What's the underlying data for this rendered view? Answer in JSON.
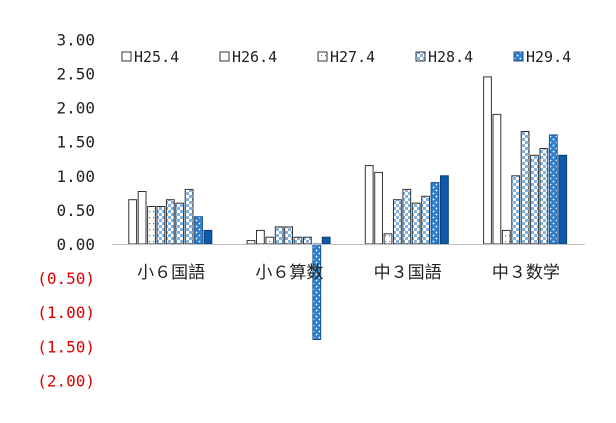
{
  "chart_data": {
    "type": "bar",
    "categories": [
      "小６国語",
      "小６算数",
      "中３国語",
      "中３数学"
    ],
    "series": [
      {
        "name": "H25.4",
        "values": [
          0.65,
          0.05,
          1.15,
          2.45
        ]
      },
      {
        "name": "H26.4",
        "values": [
          0.77,
          0.2,
          1.05,
          1.9
        ]
      },
      {
        "name": "H27.4",
        "values": [
          0.55,
          0.1,
          0.15,
          0.2
        ]
      },
      {
        "name": "H28.4",
        "values": [
          0.55,
          0.25,
          0.65,
          1.0
        ]
      },
      {
        "name": "H28.4",
        "values": [
          0.65,
          0.25,
          0.8,
          1.65
        ]
      },
      {
        "name": "H28.4",
        "values": [
          0.6,
          0.1,
          0.6,
          1.3
        ]
      },
      {
        "name": "H29.4",
        "values": [
          0.8,
          0.1,
          0.7,
          1.4
        ]
      },
      {
        "name": "H29.4",
        "values": [
          0.4,
          -1.4,
          0.9,
          1.6
        ]
      },
      {
        "name": "H29.4",
        "values": [
          0.2,
          0.1,
          1.0,
          1.3
        ]
      }
    ],
    "legend": [
      "H25.4",
      "H26.4",
      "H27.4",
      "H28.4",
      "H29.4"
    ],
    "legend_position": "top",
    "y_tick_labels": [
      "3.00",
      "2.50",
      "2.00",
      "1.50",
      "1.00",
      "0.50",
      "0.00",
      "(0.50)",
      "(1.00)",
      "(1.50)",
      "(2.00)"
    ],
    "y_tick_values": [
      3.0,
      2.5,
      2.0,
      1.5,
      1.0,
      0.5,
      0.0,
      -0.5,
      -1.0,
      -1.5,
      -2.0
    ],
    "ylim": [
      -2.0,
      3.0
    ],
    "grid": false,
    "colors": {
      "text": "#222222",
      "negative_text": "#e00000",
      "edge": "#333333",
      "blue": "#1f6fbf",
      "dark_blue": "#0f5aa8",
      "checker": "#7fb2e6"
    },
    "title": "",
    "xlabel": "",
    "ylabel": ""
  }
}
